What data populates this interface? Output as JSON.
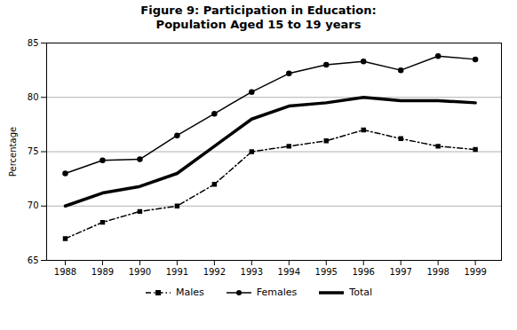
{
  "chart_data": {
    "type": "line",
    "title": "Figure 9: Participation in Education:",
    "subtitle": "Population Aged 15 to 19 years",
    "ylabel": "Percentage",
    "x": [
      1988,
      1989,
      1990,
      1991,
      1992,
      1993,
      1994,
      1995,
      1996,
      1997,
      1998,
      1999
    ],
    "series": [
      {
        "name": "Males",
        "color": "#000000",
        "marker": "square",
        "line_style": "dashdot",
        "values": [
          67.0,
          68.5,
          69.5,
          70.0,
          72.0,
          75.0,
          75.5,
          76.0,
          77.0,
          76.2,
          75.5,
          75.2
        ]
      },
      {
        "name": "Females",
        "color": "#000000",
        "marker": "circle",
        "line_style": "solid",
        "values": [
          73.0,
          74.2,
          74.3,
          76.5,
          78.5,
          80.5,
          82.2,
          83.0,
          83.3,
          82.5,
          83.8,
          83.5
        ]
      },
      {
        "name": "Total",
        "color": "#000000",
        "line_style": "solid",
        "values": [
          70.0,
          71.2,
          71.8,
          73.0,
          75.5,
          78.0,
          79.2,
          79.5,
          80.0,
          79.7,
          79.7,
          79.5
        ]
      }
    ],
    "xlim": [
      1987.5,
      1999.7
    ],
    "xticks": [
      1988,
      1989,
      1990,
      1991,
      1992,
      1993,
      1994,
      1995,
      1996,
      1997,
      1998,
      1999
    ],
    "ylim": [
      65,
      85
    ],
    "yticks": [
      65,
      70,
      75,
      80,
      85
    ],
    "grid": true,
    "legend": "bottom"
  }
}
